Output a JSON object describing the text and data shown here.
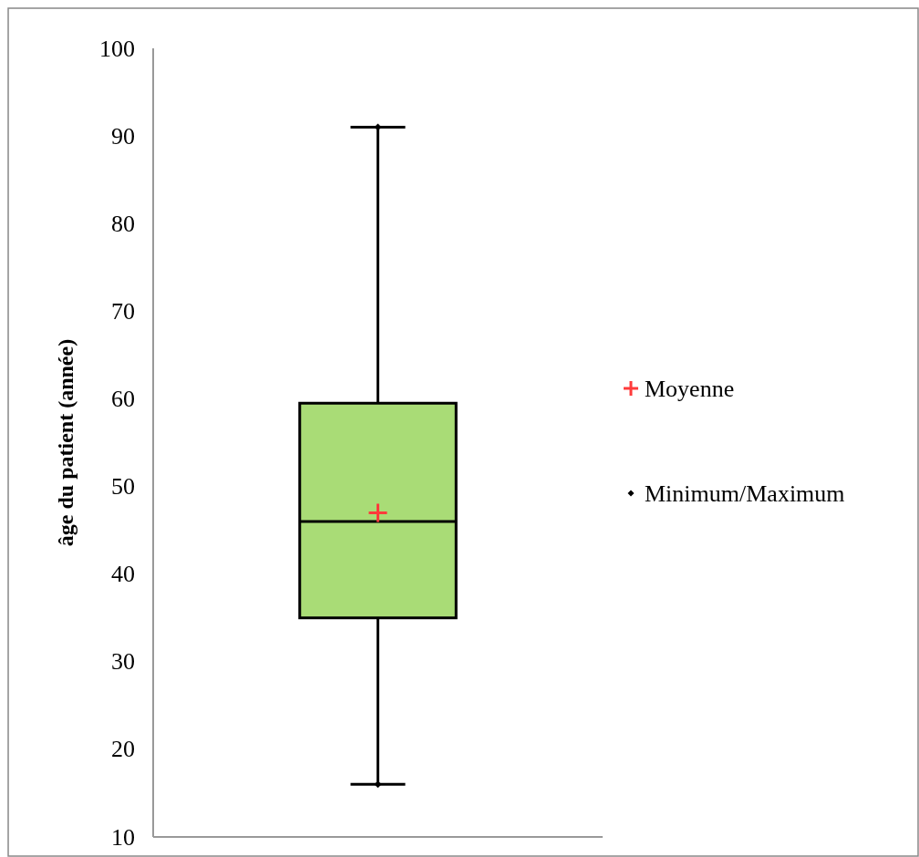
{
  "chart_data": {
    "type": "box",
    "ylabel": "âge du patient (année)",
    "categories": [
      null
    ],
    "color": "#a9dc76",
    "boxes": [
      {
        "low": 16,
        "q1": 35,
        "median": 46,
        "q3": 59.5,
        "high": 91
      }
    ],
    "series": [
      {
        "name": "Moyenne",
        "type": "scatter",
        "marker": "cross",
        "color": "#ff3b3b",
        "values": [
          47
        ]
      },
      {
        "name": "Minimum/Maximum",
        "type": "scatter",
        "marker": "diamond",
        "color": "#000000",
        "values": [
          16
        ]
      },
      {
        "type": "scatter",
        "marker": "diamond",
        "color": "#000000",
        "values": [
          91
        ]
      }
    ],
    "ylim": [
      10,
      100
    ],
    "yticks": [
      10,
      20,
      30,
      40,
      50,
      60,
      70,
      80,
      90,
      100
    ],
    "legend": "right",
    "grid": false
  }
}
